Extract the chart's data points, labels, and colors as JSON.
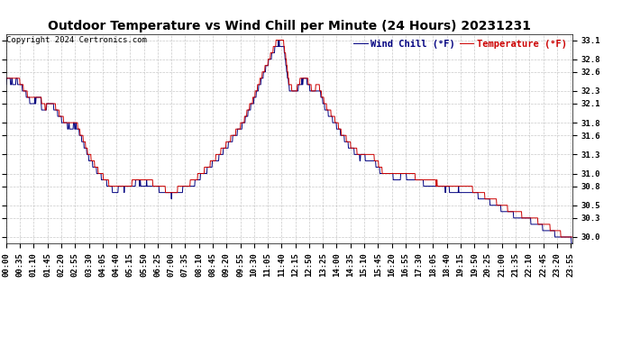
{
  "title": "Outdoor Temperature vs Wind Chill per Minute (24 Hours) 20231231",
  "copyright": "Copyright 2024 Certronics.com",
  "legend_wind_chill": "Wind Chill (°F)",
  "legend_temperature": "Temperature (°F)",
  "wind_chill_color": "#000080",
  "temperature_color": "#cc0000",
  "background_color": "#ffffff",
  "grid_color": "#bbbbbb",
  "ylim": [
    29.9,
    33.2
  ],
  "yticks": [
    30.0,
    30.3,
    30.5,
    30.8,
    31.0,
    31.3,
    31.6,
    31.8,
    32.1,
    32.3,
    32.6,
    32.8,
    33.1
  ],
  "title_fontsize": 10,
  "copyright_fontsize": 6.5,
  "legend_fontsize": 7.5,
  "tick_fontsize": 6.5
}
